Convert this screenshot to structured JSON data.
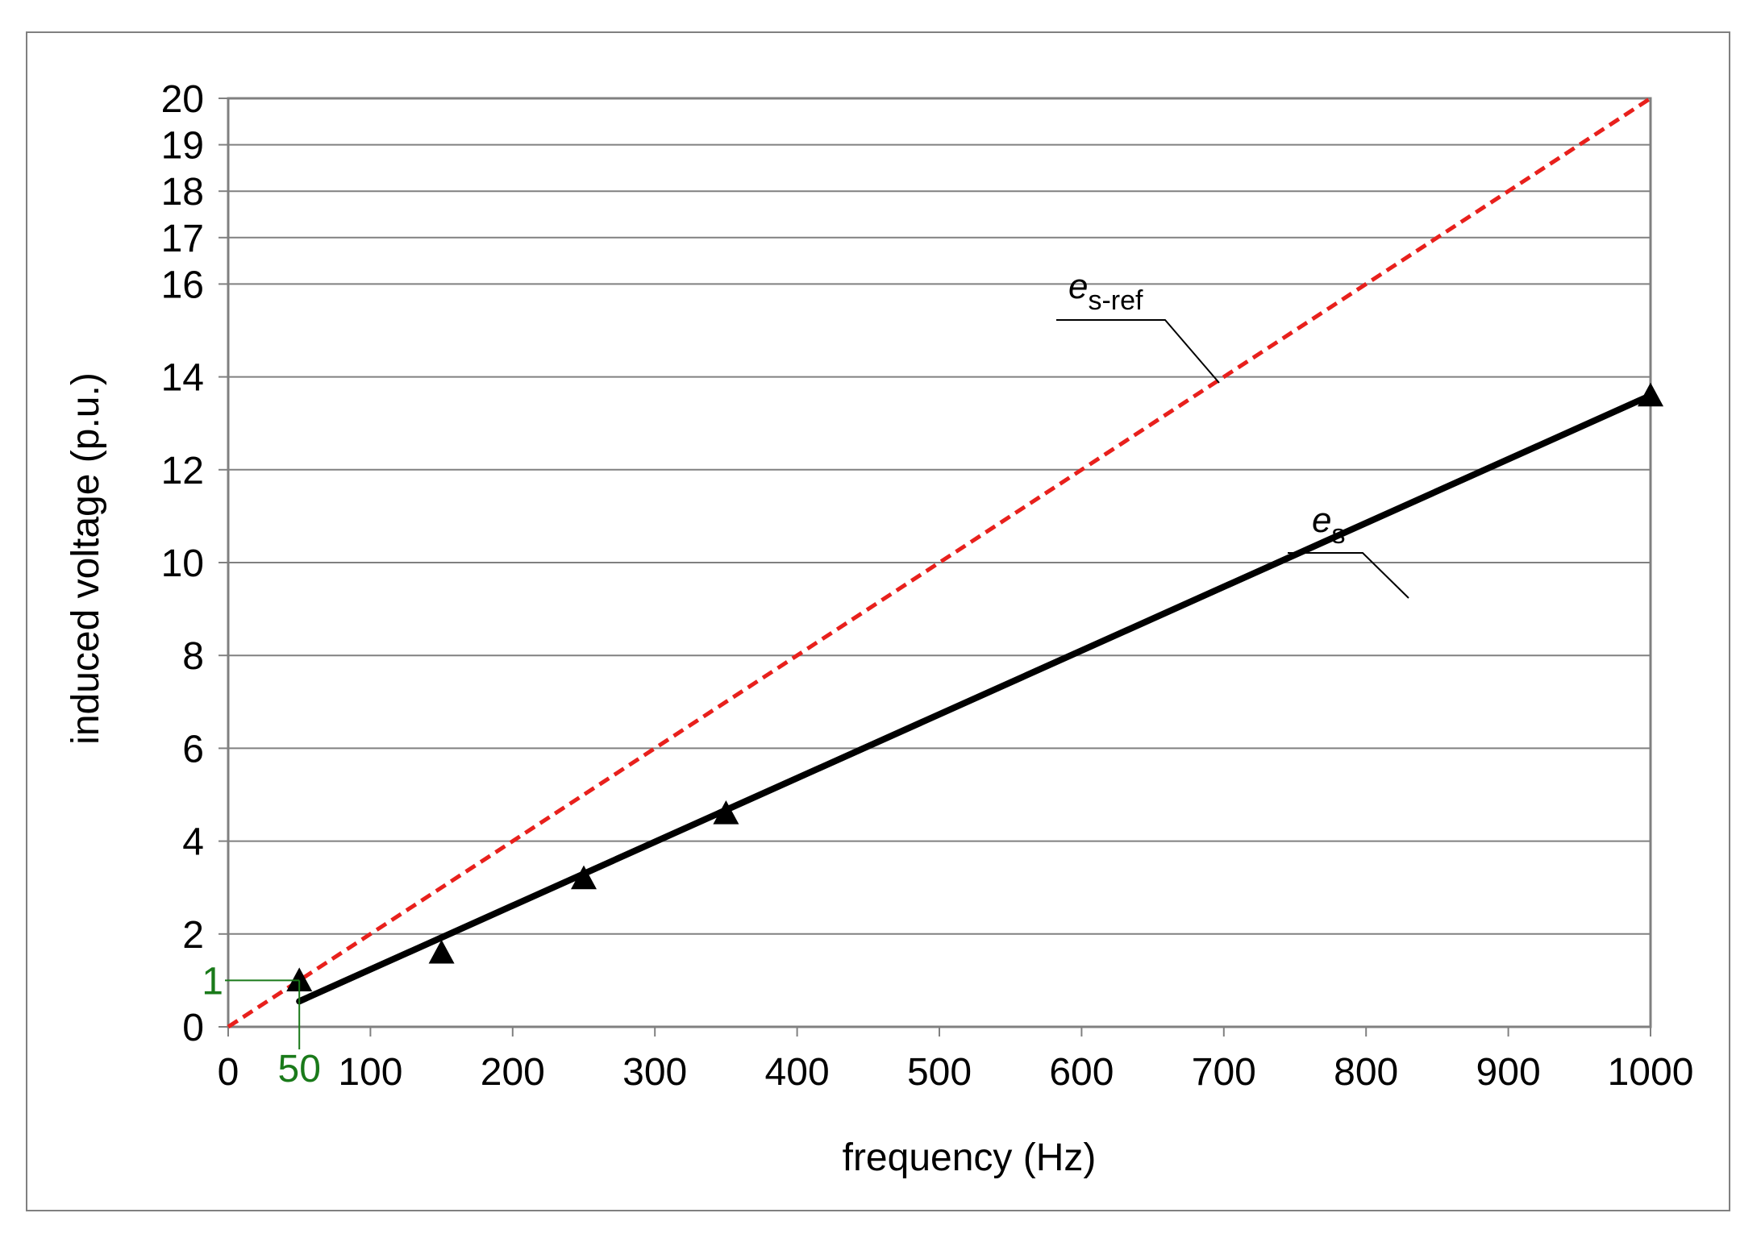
{
  "colors": {
    "grid": "#808080",
    "reference_line": "#e8201c",
    "measured_line": "#000000",
    "annotation": "#1a7a1a",
    "frame": "#808080"
  },
  "chart_data": {
    "type": "line",
    "xlabel": "frequency (Hz)",
    "ylabel": "induced voltage (p.u.)",
    "xlim": [
      0,
      1000
    ],
    "ylim": [
      0,
      20
    ],
    "x_ticks": [
      "0",
      "100",
      "200",
      "300",
      "400",
      "500",
      "600",
      "700",
      "800",
      "900",
      "1000"
    ],
    "y_ticks": [
      "0",
      "2",
      "4",
      "6",
      "8",
      "10",
      "12",
      "14",
      "16",
      "17",
      "18",
      "19",
      "20"
    ],
    "grid": true,
    "series": [
      {
        "name": "e",
        "name_subscript": "s-ref",
        "style": "dashed",
        "color": "#e8201c",
        "x": [
          0,
          1000
        ],
        "y": [
          0,
          20
        ]
      },
      {
        "name": "e",
        "name_subscript": "s",
        "style": "solid",
        "color": "#000000",
        "line_x": [
          50,
          1000
        ],
        "line_y": [
          0.55,
          13.6
        ],
        "marker": "triangle",
        "points_x": [
          50,
          150,
          250,
          350,
          1000
        ],
        "points_y": [
          1.0,
          1.6,
          3.2,
          4.6,
          13.6
        ]
      }
    ],
    "annotations": {
      "x_value": "50",
      "y_value": "1"
    }
  }
}
